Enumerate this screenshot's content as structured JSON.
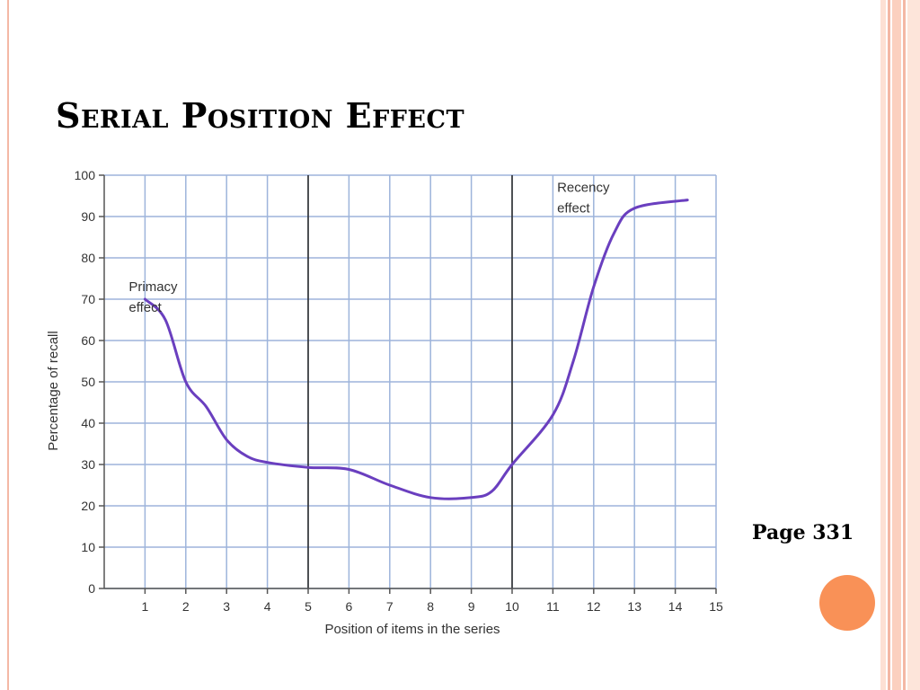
{
  "slide": {
    "title": "Serial Position Effect",
    "page_ref": "Page 331",
    "accent_color": "#f99157",
    "frame_color": "#f4b8a5"
  },
  "chart_data": {
    "type": "line",
    "title": "",
    "xlabel": "Position of items in the series",
    "ylabel": "Percentage of recall",
    "xlim": [
      0,
      15
    ],
    "ylim": [
      0,
      100
    ],
    "x_ticks": [
      1,
      2,
      3,
      4,
      5,
      6,
      7,
      8,
      9,
      10,
      11,
      12,
      13,
      14,
      15
    ],
    "y_ticks": [
      0,
      10,
      20,
      30,
      40,
      50,
      60,
      70,
      80,
      90,
      100
    ],
    "grid": true,
    "grid_color": "#9db4db",
    "line_color": "#6a3fbf",
    "vertical_lines": [
      5,
      10
    ],
    "series": [
      {
        "name": "",
        "x": [
          1,
          1.5,
          2,
          2.5,
          3,
          3.5,
          4,
          5,
          6,
          7,
          8,
          9,
          9.5,
          10,
          11,
          11.5,
          12,
          12.5,
          13,
          14.3
        ],
        "y": [
          70,
          65,
          50,
          44,
          36,
          32,
          30.5,
          29.3,
          28.8,
          25,
          22,
          22,
          23.5,
          30,
          42,
          55,
          73,
          86,
          92,
          94
        ]
      }
    ],
    "annotations": [
      {
        "lines": [
          "Primacy",
          "effect"
        ],
        "x": 1,
        "y": 72
      },
      {
        "lines": [
          "Recency",
          "effect"
        ],
        "x": 11.5,
        "y": 96
      }
    ]
  }
}
